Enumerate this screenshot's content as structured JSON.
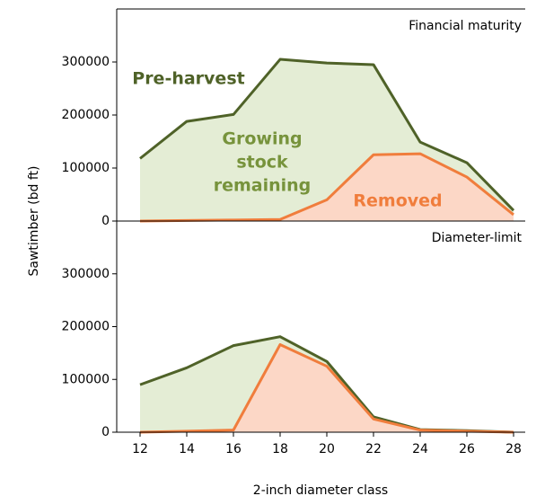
{
  "chart_data": [
    {
      "type": "area",
      "panel_label": "Financial maturity",
      "y_label": "Sawtimber (bd ft)",
      "x": [
        12,
        14,
        16,
        18,
        20,
        22,
        24,
        26,
        28
      ],
      "xlim": [
        11,
        28.5
      ],
      "ylim": [
        0,
        400000
      ],
      "yticks": [
        0,
        100000,
        200000,
        300000
      ],
      "series": [
        {
          "color": "#4f6228",
          "fill": "#e4edd5",
          "values": [
            118000,
            188000,
            201000,
            305000,
            298000,
            295000,
            149000,
            110000,
            20000
          ]
        },
        {
          "color": "#f07d3c",
          "fill": "#fcd7c6",
          "values": [
            0,
            1000,
            2000,
            3000,
            40000,
            125000,
            127000,
            83000,
            12000
          ]
        }
      ],
      "annotations": [
        {
          "lines": [
            "Pre-harvest"
          ],
          "color": "#4f6228"
        },
        {
          "lines": [
            "Growing",
            "stock",
            "remaining"
          ],
          "color": "#77933c"
        },
        {
          "lines": [
            "Removed"
          ],
          "color": "#f07d3c"
        }
      ]
    },
    {
      "type": "area",
      "panel_label": "Diameter-limit",
      "x_label": "2-inch diameter class",
      "x": [
        12,
        14,
        16,
        18,
        20,
        22,
        24,
        26,
        28
      ],
      "xlim": [
        11,
        28.5
      ],
      "xticks": [
        12,
        14,
        16,
        18,
        20,
        22,
        24,
        26,
        28
      ],
      "ylim": [
        0,
        400000
      ],
      "yticks": [
        0,
        100000,
        200000,
        300000
      ],
      "series": [
        {
          "color": "#4f6228",
          "fill": "#e4edd5",
          "values": [
            90000,
            122000,
            164000,
            181000,
            134000,
            29000,
            5000,
            3000,
            0
          ]
        },
        {
          "color": "#f07d3c",
          "fill": "#fcd7c6",
          "values": [
            0,
            2000,
            4000,
            166000,
            125000,
            25000,
            4000,
            2000,
            0
          ]
        }
      ]
    }
  ]
}
